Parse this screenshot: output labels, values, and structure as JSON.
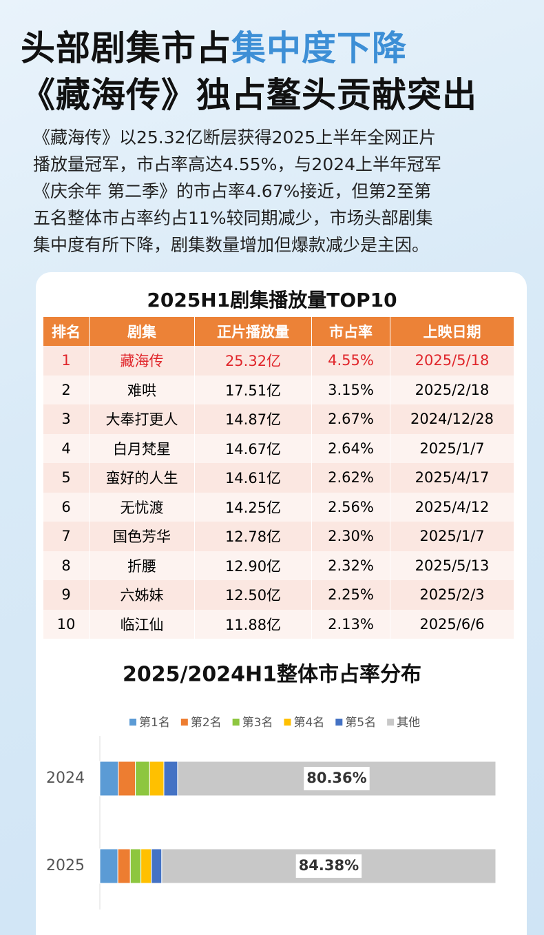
{
  "header": {
    "title_line1": [
      "头部剧集市占",
      "集中度下降"
    ],
    "title_line2": "《藏海传》独占鳌头贡献突出"
  },
  "intro": [
    "《藏海传》以25.32亿断层获得2025上半年全网正片",
    "播放量冠军，市占率高达4.55%，与2024上半年冠军",
    "《庆余年  第二季》的市占率4.67%接近，但第2至第",
    "五名整体市占率约占11%较同期减少，市场头部剧集",
    "集中度有所下降，剧集数量增加但爆款减少是主因。"
  ],
  "table": {
    "title": "2025H1剧集播放量TOP10",
    "header": [
      "排名",
      "剧集",
      "正片播放量",
      "市占率",
      "上映日期"
    ],
    "rows": [
      [
        "1",
        "藏海传",
        "25.32亿",
        "4.55%",
        "2025/5/18"
      ],
      [
        "2",
        "难哄",
        "17.51亿",
        "3.15%",
        "2025/2/18"
      ],
      [
        "3",
        "大奉打更人",
        "14.87亿",
        "2.67%",
        "2024/12/28"
      ],
      [
        "4",
        "白月梵星",
        "14.67亿",
        "2.64%",
        "2025/1/7"
      ],
      [
        "5",
        "蛮好的人生",
        "14.61亿",
        "2.62%",
        "2025/4/17"
      ],
      [
        "6",
        "无忧渡",
        "14.25亿",
        "2.56%",
        "2025/4/12"
      ],
      [
        "7",
        "国色芳华",
        "12.78亿",
        "2.30%",
        "2025/1/7"
      ],
      [
        "8",
        "折腰",
        "12.90亿",
        "2.32%",
        "2025/5/13"
      ],
      [
        "9",
        "六姊妹",
        "12.50亿",
        "2.25%",
        "2025/2/3"
      ],
      [
        "10",
        "临江仙",
        "11.88亿",
        "2.13%",
        "2025/6/6"
      ]
    ]
  },
  "chart_data": {
    "type": "bar",
    "orientation": "horizontal",
    "stacked": true,
    "title": "2025/2024H1整体市占率分布",
    "categories": [
      "2024",
      "2025"
    ],
    "series": [
      {
        "name": "第1名",
        "color": "#5b9bd5",
        "values": [
          4.67,
          4.55
        ]
      },
      {
        "name": "第2名",
        "color": "#ed7d31",
        "values": [
          4.3,
          3.15
        ]
      },
      {
        "name": "第3名",
        "color": "#8dc63f",
        "values": [
          3.6,
          2.67
        ]
      },
      {
        "name": "第4名",
        "color": "#ffc000",
        "values": [
          3.6,
          2.64
        ]
      },
      {
        "name": "第5名",
        "color": "#4472c4",
        "values": [
          3.47,
          2.62
        ]
      },
      {
        "name": "其他",
        "color": "#c8c8c8",
        "values": [
          80.36,
          84.38
        ],
        "value_labels": [
          "80.36%",
          "84.38%"
        ]
      }
    ],
    "legend": "top"
  }
}
